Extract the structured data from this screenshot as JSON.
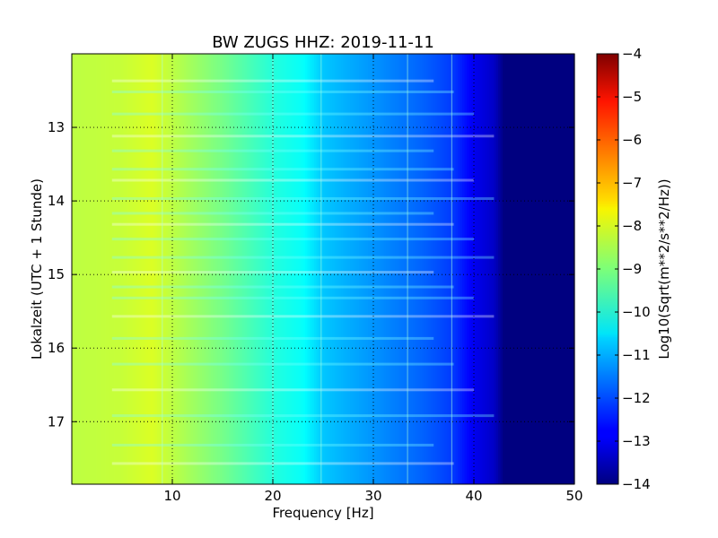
{
  "chart_data": {
    "type": "heatmap",
    "title": "BW ZUGS HHZ: 2019-11-11",
    "xlabel": "Frequency [Hz]",
    "ylabel": "Lokalzeit (UTC + 1 Stunde)",
    "xlim": [
      0,
      50
    ],
    "ylim": [
      17.85,
      12.0
    ],
    "y_inverted": true,
    "xticks": [
      10,
      20,
      30,
      40,
      50
    ],
    "yticks": [
      13,
      14,
      15,
      16,
      17
    ],
    "grid": true,
    "colormap": "jet",
    "colorbar": {
      "label": "Log10(Sqrt(m**2/s**2/Hz))",
      "range": [
        -14,
        -4
      ],
      "ticks": [
        -4,
        -5,
        -6,
        -7,
        -8,
        -9,
        -10,
        -11,
        -12,
        -13,
        -14
      ]
    },
    "frequency_profile": {
      "frequency_hz": [
        0,
        5,
        8,
        10,
        15,
        20,
        23,
        25,
        30,
        35,
        38,
        40,
        42,
        43,
        50
      ],
      "log10_amplitude": [
        -8.4,
        -8.3,
        -8.1,
        -8.4,
        -9.1,
        -9.9,
        -10.2,
        -10.8,
        -11.3,
        -11.8,
        -12.2,
        -12.9,
        -13.3,
        -14,
        -14
      ]
    }
  }
}
